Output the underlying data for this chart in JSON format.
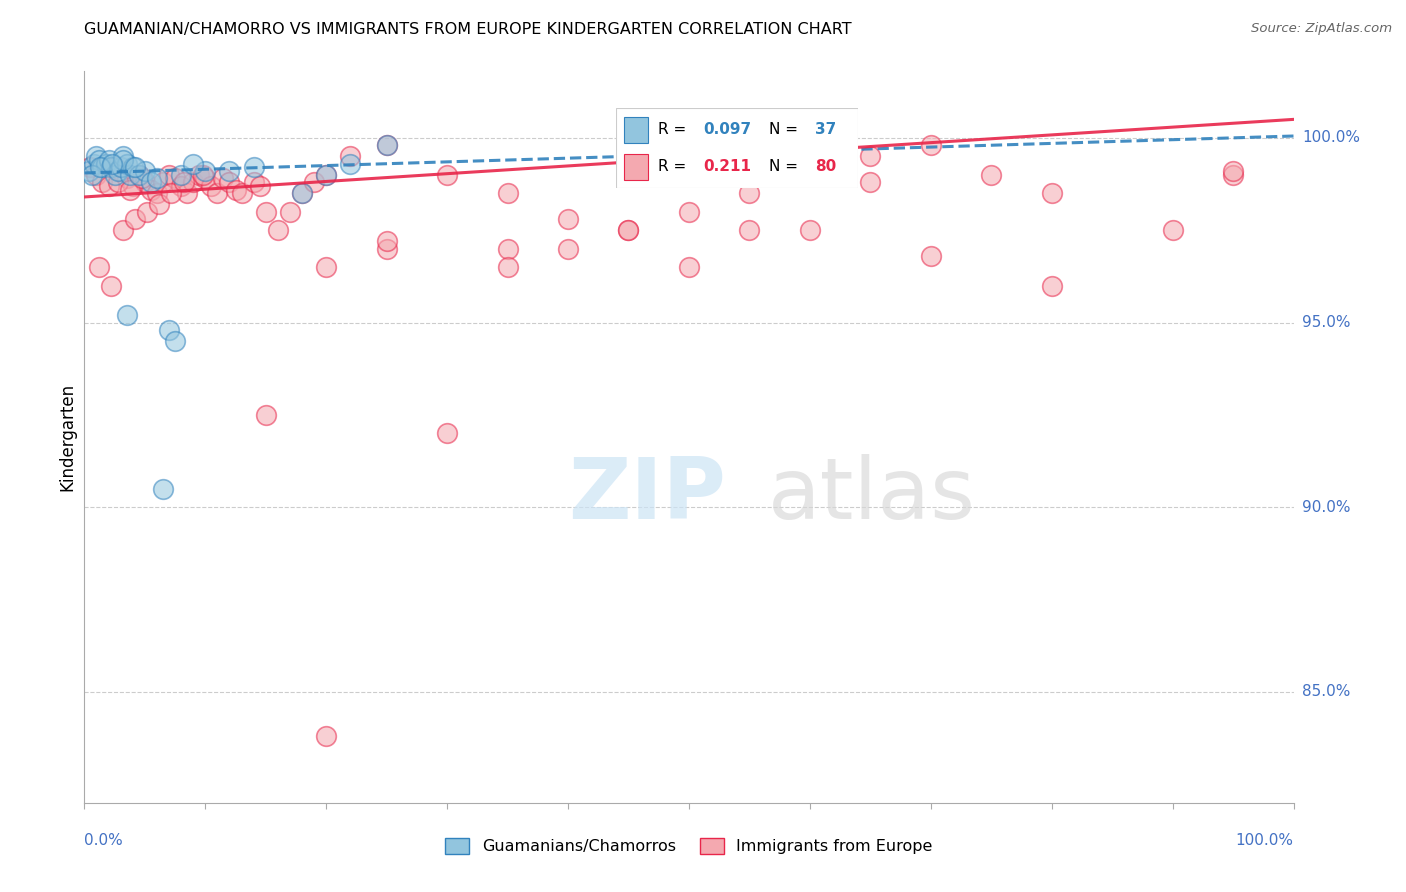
{
  "title": "GUAMANIAN/CHAMORRO VS IMMIGRANTS FROM EUROPE KINDERGARTEN CORRELATION CHART",
  "source": "Source: ZipAtlas.com",
  "ylabel": "Kindergarten",
  "legend1_label": "Guamanians/Chamorros",
  "legend2_label": "Immigrants from Europe",
  "R1": 0.097,
  "N1": 37,
  "R2": 0.211,
  "N2": 80,
  "color1": "#92c5de",
  "color2": "#f4a9b0",
  "trendline1_color": "#3182bd",
  "trendline2_color": "#e8264a",
  "xlim": [
    0,
    100
  ],
  "ylim": [
    82.0,
    101.8
  ],
  "yticks": [
    85.0,
    90.0,
    95.0,
    100.0
  ],
  "ytick_labels": [
    "85.0%",
    "90.0%",
    "95.0%",
    "100.0%"
  ],
  "trendline1_y0": 99.05,
  "trendline1_y1": 100.05,
  "trendline2_y0": 98.4,
  "trendline2_y1": 100.5,
  "blue_x": [
    0.4,
    0.8,
    1.0,
    1.2,
    1.5,
    1.8,
    2.0,
    2.2,
    2.5,
    2.8,
    3.0,
    3.2,
    3.5,
    3.8,
    4.0,
    4.5,
    5.0,
    5.5,
    6.0,
    7.0,
    8.0,
    3.2,
    4.2,
    7.5,
    10.0,
    14.0,
    18.0,
    20.0,
    22.0,
    25.0,
    3.5,
    6.5,
    9.0,
    12.0,
    0.6,
    1.3,
    2.3
  ],
  "blue_y": [
    99.1,
    99.3,
    99.5,
    99.4,
    99.2,
    99.3,
    99.4,
    99.2,
    99.0,
    99.1,
    99.2,
    99.5,
    99.3,
    99.0,
    99.2,
    99.0,
    99.1,
    98.8,
    98.9,
    94.8,
    99.0,
    99.4,
    99.2,
    94.5,
    99.1,
    99.2,
    98.5,
    99.0,
    99.3,
    99.8,
    95.2,
    90.5,
    99.3,
    99.1,
    99.0,
    99.2,
    99.3
  ],
  "pink_x": [
    0.5,
    1.0,
    1.5,
    2.0,
    2.5,
    3.0,
    3.5,
    4.0,
    4.5,
    5.0,
    5.5,
    6.0,
    6.5,
    7.0,
    7.5,
    8.0,
    8.5,
    9.0,
    9.5,
    10.0,
    10.5,
    11.0,
    11.5,
    12.0,
    12.5,
    13.0,
    14.0,
    15.0,
    16.0,
    17.0,
    18.0,
    19.0,
    20.0,
    22.0,
    25.0,
    30.0,
    35.0,
    40.0,
    45.0,
    50.0,
    55.0,
    60.0,
    65.0,
    70.0,
    75.0,
    80.0,
    90.0,
    95.0,
    1.2,
    2.2,
    3.2,
    4.2,
    5.2,
    6.2,
    7.2,
    8.2,
    35.0,
    50.0,
    60.0,
    70.0,
    30.0,
    40.0,
    45.0,
    15.0,
    20.0,
    25.0,
    55.0,
    80.0,
    2.8,
    3.8,
    4.8,
    9.8,
    14.5,
    65.0,
    45.0,
    25.0,
    55.0,
    35.0,
    20.0,
    95.0
  ],
  "pink_y": [
    99.2,
    99.0,
    98.8,
    98.7,
    99.2,
    99.1,
    98.9,
    98.7,
    99.0,
    98.8,
    98.6,
    98.5,
    98.8,
    99.0,
    98.9,
    98.7,
    98.5,
    98.8,
    99.0,
    98.9,
    98.7,
    98.5,
    98.9,
    98.8,
    98.6,
    98.5,
    98.8,
    98.0,
    97.5,
    98.0,
    98.5,
    98.8,
    99.0,
    99.5,
    99.8,
    99.0,
    98.5,
    97.0,
    97.5,
    98.0,
    98.5,
    99.0,
    99.5,
    99.8,
    99.0,
    98.5,
    97.5,
    99.0,
    96.5,
    96.0,
    97.5,
    97.8,
    98.0,
    98.2,
    98.5,
    98.8,
    97.0,
    96.5,
    97.5,
    96.8,
    92.0,
    97.8,
    97.5,
    92.5,
    96.5,
    97.0,
    97.5,
    96.0,
    98.8,
    98.6,
    98.9,
    99.0,
    98.7,
    98.8,
    99.2,
    97.2,
    99.3,
    96.5,
    83.8,
    99.1
  ]
}
